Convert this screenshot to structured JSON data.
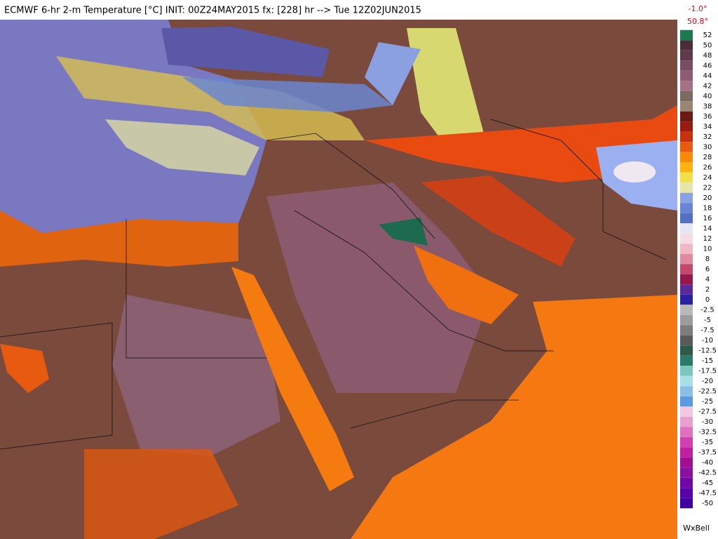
{
  "header": {
    "title": "ECMWF 6-hr 2-m Temperature [°C] INIT: 00Z24MAY2015 fx: [228] hr --> Tue 12Z02JUN2015"
  },
  "legend": {
    "min": "-1.0°",
    "max": "50.8°",
    "ticks": [
      52,
      50,
      48,
      46,
      44,
      42,
      40,
      38,
      36,
      34,
      32,
      30,
      28,
      26,
      24,
      22,
      20,
      18,
      16,
      14,
      12,
      10,
      8,
      6,
      4,
      2,
      0,
      -2.5,
      -5,
      -7.5,
      -10,
      -12.5,
      -15,
      -17.5,
      -20,
      -22.5,
      -25,
      -27.5,
      -30,
      -32.5,
      -35,
      -37.5,
      -40,
      -42.5,
      -45,
      -47.5,
      -50
    ]
  },
  "credit": "WxBell"
}
